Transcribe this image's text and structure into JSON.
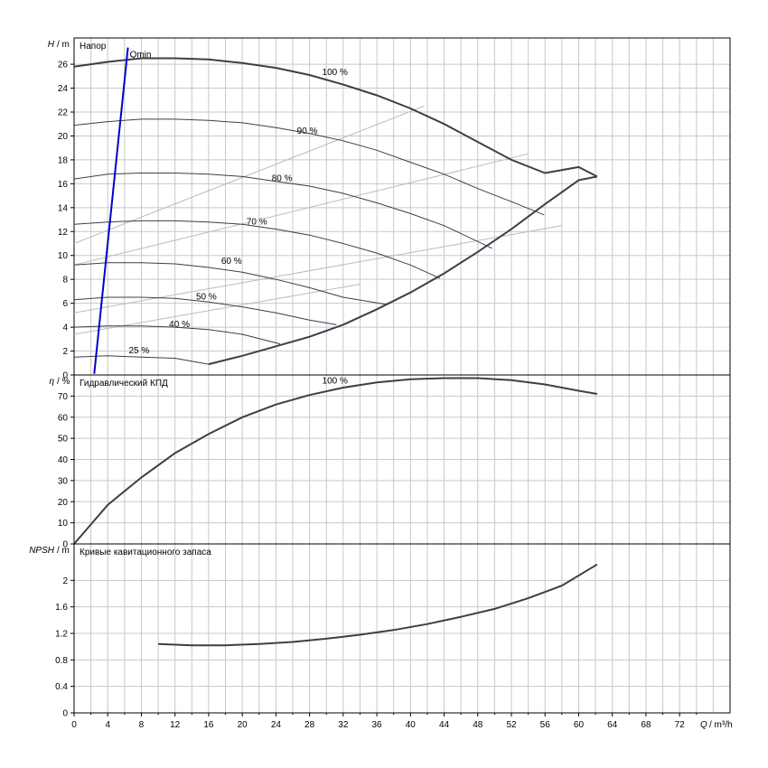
{
  "chart_data": [
    {
      "type": "line",
      "title": "Напор",
      "ylabel_symbol": "H",
      "ylabel_unit": "m",
      "xlim": [
        0,
        78
      ],
      "ylim": [
        0,
        28.2
      ],
      "yticks": [
        0,
        2,
        4,
        6,
        8,
        10,
        12,
        14,
        16,
        18,
        20,
        22,
        24,
        26
      ],
      "grid": true,
      "series": [
        {
          "name": "100 %",
          "label": "100 %",
          "label_at": [
            29.5,
            25.1
          ],
          "x": [
            0,
            4,
            8,
            12,
            16,
            20,
            24,
            28,
            32,
            36,
            40,
            44,
            48,
            52,
            56,
            60,
            62.2
          ],
          "y": [
            25.8,
            26.2,
            26.5,
            26.5,
            26.4,
            26.1,
            25.7,
            25.1,
            24.3,
            23.4,
            22.3,
            21.0,
            19.5,
            18.0,
            16.9,
            17.4,
            16.6
          ]
        },
        {
          "name": "90 %",
          "label": "90 %",
          "label_at": [
            26.5,
            20.2
          ],
          "x": [
            0,
            4,
            8,
            12,
            16,
            20,
            24,
            28,
            32,
            36,
            40,
            44,
            48,
            52,
            55.9
          ],
          "y": [
            20.9,
            21.2,
            21.4,
            21.4,
            21.3,
            21.1,
            20.7,
            20.2,
            19.6,
            18.8,
            17.8,
            16.8,
            15.6,
            14.5,
            13.4
          ]
        },
        {
          "name": "80 %",
          "label": "80 %",
          "label_at": [
            23.5,
            16.2
          ],
          "x": [
            0,
            4,
            8,
            12,
            16,
            20,
            24,
            28,
            32,
            36,
            40,
            44,
            49.7
          ],
          "y": [
            16.4,
            16.8,
            16.9,
            16.9,
            16.8,
            16.6,
            16.2,
            15.8,
            15.2,
            14.4,
            13.5,
            12.5,
            10.6
          ]
        },
        {
          "name": "70 %",
          "label": "70 %",
          "label_at": [
            20.5,
            12.6
          ],
          "x": [
            0,
            4,
            8,
            12,
            16,
            20,
            24,
            28,
            32,
            36,
            40,
            43.5
          ],
          "y": [
            12.6,
            12.8,
            12.9,
            12.9,
            12.8,
            12.6,
            12.2,
            11.7,
            11.0,
            10.2,
            9.2,
            8.1
          ]
        },
        {
          "name": "60 %",
          "label": "60 %",
          "label_at": [
            17.5,
            9.3
          ],
          "x": [
            0,
            4,
            8,
            12,
            16,
            20,
            24,
            28,
            32,
            37.2
          ],
          "y": [
            9.2,
            9.4,
            9.4,
            9.3,
            9.0,
            8.6,
            8.0,
            7.3,
            6.5,
            5.9
          ]
        },
        {
          "name": "50 %",
          "label": "50 %",
          "label_at": [
            14.5,
            6.3
          ],
          "x": [
            0,
            4,
            8,
            12,
            16,
            20,
            24,
            28,
            31.2
          ],
          "y": [
            6.3,
            6.5,
            6.5,
            6.4,
            6.1,
            5.7,
            5.2,
            4.6,
            4.2
          ]
        },
        {
          "name": "40 %",
          "label": "40 %",
          "label_at": [
            11.3,
            4.0
          ],
          "x": [
            0,
            4,
            8,
            12,
            16,
            20,
            24.5
          ],
          "y": [
            4.0,
            4.1,
            4.1,
            4.0,
            3.8,
            3.4,
            2.6
          ]
        },
        {
          "name": "25 %",
          "label": "25 %",
          "label_at": [
            6.5,
            1.8
          ],
          "x": [
            0,
            4,
            8,
            12,
            16
          ],
          "y": [
            1.5,
            1.6,
            1.5,
            1.4,
            0.9
          ]
        }
      ],
      "boundary": {
        "x": [
          16,
          20,
          24,
          28,
          32,
          36,
          40,
          44,
          48,
          52,
          56,
          60,
          62.2
        ],
        "y": [
          0.9,
          1.6,
          2.4,
          3.2,
          4.2,
          5.5,
          6.9,
          8.5,
          10.3,
          12.2,
          14.3,
          16.3,
          16.6
        ]
      },
      "efficiency_lines": [
        {
          "x": [
            0,
            41.6
          ],
          "y": [
            11.0,
            22.5
          ]
        },
        {
          "x": [
            0,
            54.0
          ],
          "y": [
            9.2,
            18.5
          ]
        },
        {
          "x": [
            0,
            58.0
          ],
          "y": [
            5.2,
            12.5
          ]
        },
        {
          "x": [
            0,
            34.0
          ],
          "y": [
            3.4,
            7.6
          ]
        }
      ],
      "qmin_line": {
        "label": "Qmin",
        "x": [
          2.4,
          6.4
        ],
        "y": [
          0.1,
          27.4
        ]
      }
    },
    {
      "type": "line",
      "title": "Гидравлический КПД",
      "ylabel_symbol": "η",
      "ylabel_unit": "%",
      "xlim": [
        0,
        78
      ],
      "ylim": [
        0,
        80
      ],
      "yticks": [
        0,
        10,
        20,
        30,
        40,
        50,
        60,
        70
      ],
      "grid": true,
      "series": [
        {
          "name": "100 %",
          "label": "100 %",
          "label_at": [
            29.5,
            76
          ],
          "x": [
            0,
            4,
            8,
            12,
            16,
            20,
            24,
            28,
            32,
            36,
            40,
            44,
            48,
            52,
            56,
            60,
            62.2
          ],
          "y": [
            0,
            18.5,
            31.5,
            43.0,
            52.0,
            60.0,
            66.0,
            70.5,
            74.0,
            76.5,
            78.0,
            78.5,
            78.5,
            77.5,
            75.5,
            72.5,
            71.0
          ]
        }
      ]
    },
    {
      "type": "line",
      "title": "Кривые кавитационного запаса",
      "ylabel_symbol": "NPSH",
      "ylabel_unit": "m",
      "xlim": [
        0,
        78
      ],
      "ylim": [
        0,
        2.55
      ],
      "yticks": [
        0,
        0.4,
        0.8,
        1.2,
        1.6,
        2
      ],
      "ytick_labels": [
        "0",
        "0.4",
        "0.8",
        "1.2",
        "1.6",
        "2"
      ],
      "grid": true,
      "series": [
        {
          "x": [
            10,
            14,
            18,
            22,
            26,
            30,
            34,
            38,
            42,
            46,
            50,
            54,
            58,
            62.2
          ],
          "y": [
            1.04,
            1.02,
            1.02,
            1.04,
            1.07,
            1.12,
            1.18,
            1.25,
            1.34,
            1.45,
            1.57,
            1.73,
            1.92,
            2.24
          ]
        }
      ]
    }
  ],
  "x_axis": {
    "ticks": [
      0,
      4,
      8,
      12,
      16,
      20,
      24,
      28,
      32,
      36,
      40,
      44,
      48,
      52,
      56,
      60,
      64,
      68,
      72
    ],
    "label_symbol": "Q",
    "label_unit": "m³/h"
  },
  "colors": {
    "curve": "#3a3f4a",
    "qmin": "#0000cc",
    "efficiency_line": "#bbbbbb",
    "grid": "#c8c8c8"
  }
}
